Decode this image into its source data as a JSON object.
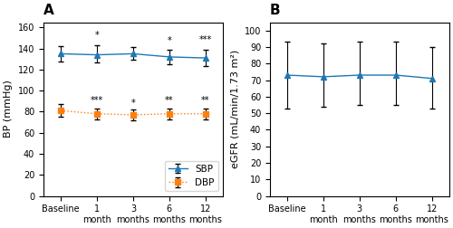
{
  "chart_data": [
    {
      "type": "line",
      "title": "A",
      "categories": [
        "Baseline",
        "1\nmonth",
        "3\nmonths",
        "6\nmonths",
        "12\nmonths"
      ],
      "y_label": "BP (mmHg)",
      "series": [
        {
          "name": "SBP",
          "marker": "triangle",
          "line_style": "solid",
          "values": [
            135,
            134,
            135,
            132,
            131
          ],
          "yerr_low": [
            7,
            7,
            6,
            7,
            8
          ],
          "yerr_high": [
            7,
            9,
            6,
            7,
            8
          ],
          "annotations": [
            null,
            "*",
            null,
            "*",
            "***"
          ],
          "annotation_y": [
            null,
            148,
            null,
            143,
            144
          ]
        },
        {
          "name": "DBP",
          "marker": "square",
          "line_style": "dotted",
          "values": [
            81,
            78,
            77,
            78,
            78
          ],
          "yerr_low": [
            6,
            5,
            5,
            5,
            5
          ],
          "yerr_high": [
            6,
            5,
            5,
            5,
            5
          ],
          "annotations": [
            null,
            "***",
            "*",
            "**",
            "**"
          ],
          "annotation_y": [
            null,
            86,
            84,
            86,
            86
          ]
        }
      ],
      "ylim": [
        0,
        165
      ],
      "yticks": [
        0,
        20,
        40,
        60,
        80,
        100,
        120,
        140,
        160
      ],
      "grid": false,
      "legend": "lower right"
    },
    {
      "type": "line",
      "title": "B",
      "categories": [
        "Baseline",
        "1\nmonth",
        "3\nmonths",
        "6\nmonths",
        "12\nmonths"
      ],
      "y_label": "eGFR (mL/min/1.73 m²)",
      "series": [
        {
          "marker": "triangle",
          "line_style": "solid",
          "values": [
            73,
            72,
            73,
            73,
            71
          ],
          "yerr_low": [
            20,
            18,
            18,
            18,
            18
          ],
          "yerr_high": [
            20,
            20,
            20,
            20,
            19
          ]
        }
      ],
      "ylim": [
        0,
        105
      ],
      "yticks": [
        0,
        10,
        20,
        30,
        40,
        50,
        60,
        70,
        80,
        90,
        100
      ],
      "grid": false
    }
  ]
}
